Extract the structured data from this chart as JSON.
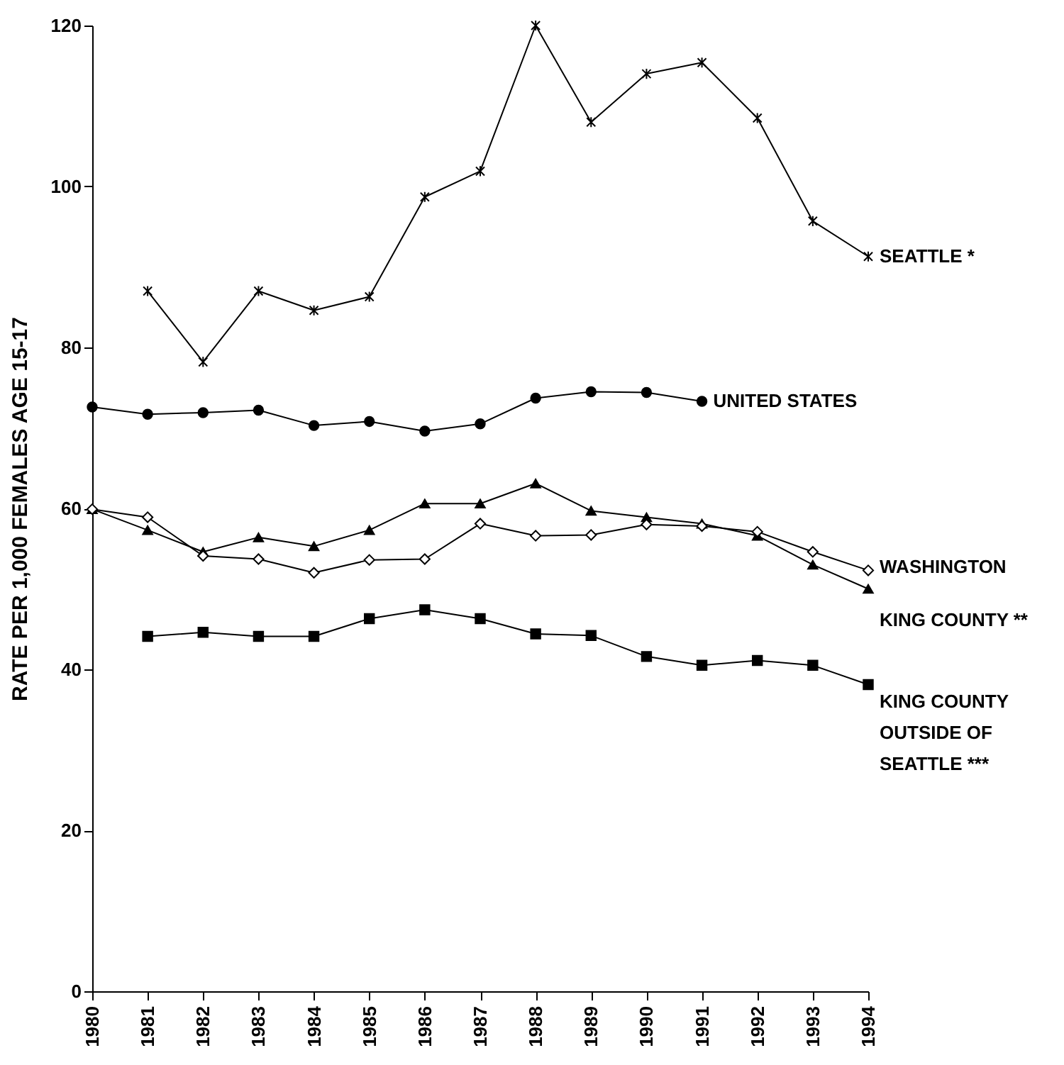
{
  "chart_data": {
    "type": "line",
    "ylabel": "RATE PER 1,000 FEMALES AGE 15-17",
    "x": [
      1980,
      1981,
      1982,
      1983,
      1984,
      1985,
      1986,
      1987,
      1988,
      1989,
      1990,
      1991,
      1992,
      1993,
      1994
    ],
    "xlim": [
      1980,
      1994
    ],
    "xticks": [
      1980,
      1981,
      1982,
      1983,
      1984,
      1985,
      1986,
      1987,
      1988,
      1989,
      1990,
      1991,
      1992,
      1993,
      1994
    ],
    "ylim": [
      0,
      120
    ],
    "yticks": [
      0,
      20,
      40,
      60,
      80,
      100,
      120
    ],
    "grid": false,
    "line_style": "solid",
    "series": [
      {
        "name": "SEATTLE *",
        "color": "#000000",
        "marker": "cross",
        "values": [
          null,
          87.0,
          78.2,
          87.0,
          84.6,
          86.3,
          98.7,
          101.9,
          120,
          108,
          114,
          115.4,
          108.5,
          95.7,
          91.3
        ]
      },
      {
        "name": "UNITED STATES",
        "color": "#000000",
        "marker": "circle",
        "values": [
          72.6,
          71.7,
          71.9,
          72.2,
          70.3,
          70.8,
          69.6,
          70.5,
          73.7,
          74.5,
          74.4,
          73.3,
          null,
          null,
          null
        ]
      },
      {
        "name": "KING COUNTY **",
        "color": "#000000",
        "marker": "triangle",
        "values": [
          59.9,
          57.3,
          54.6,
          56.4,
          55.3,
          57.3,
          60.6,
          60.6,
          63.1,
          59.7,
          58.9,
          58.1,
          56.6,
          53.0,
          50.0
        ]
      },
      {
        "name": "WASHINGTON",
        "color": "#000000",
        "marker": "diamond",
        "values": [
          59.9,
          58.9,
          54.1,
          53.7,
          52.0,
          53.6,
          53.7,
          58.1,
          56.6,
          56.7,
          58.0,
          57.8,
          57.1,
          54.6,
          52.3
        ]
      },
      {
        "name": "KING COUNTY OUTSIDE OF SEATTLE ***",
        "color": "#000000",
        "marker": "square",
        "values": [
          null,
          44.1,
          44.6,
          44.1,
          44.1,
          46.3,
          47.4,
          46.3,
          44.4,
          44.2,
          41.6,
          40.5,
          41.1,
          40.5,
          38.1
        ]
      }
    ]
  }
}
